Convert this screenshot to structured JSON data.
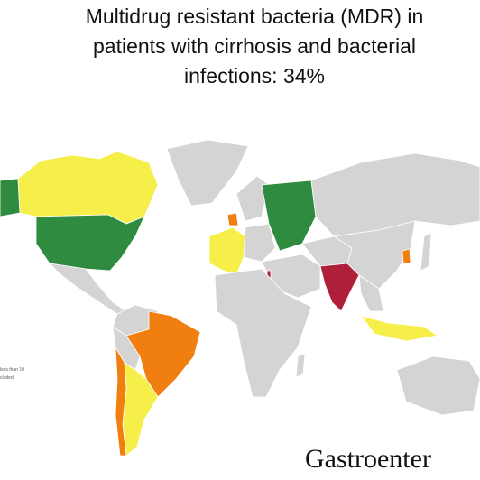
{
  "header": {
    "title_lines": [
      "Multidrug resistant bacteria (MDR) in",
      "patients with cirrhosis and bacterial",
      "infections: 34%"
    ]
  },
  "legend": {
    "items": [
      "less than 10",
      "cluded"
    ]
  },
  "footer": {
    "logo": "Gastroenter"
  }
}
